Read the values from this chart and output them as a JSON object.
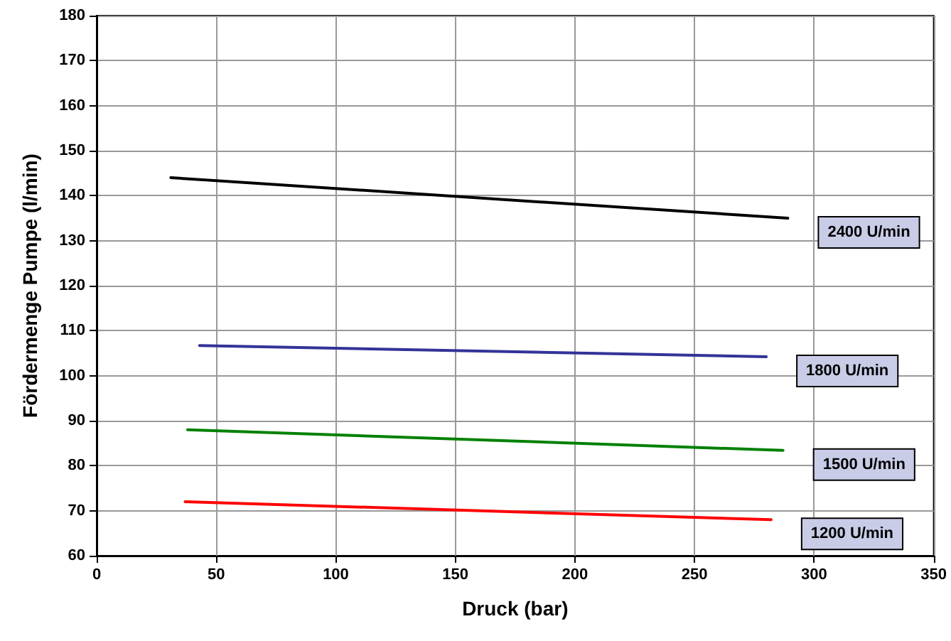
{
  "chart_data": {
    "type": "line",
    "xlabel": "Druck (bar)",
    "ylabel": "Fördermenge Pumpe (l/min)",
    "xlim": [
      0,
      350
    ],
    "xticks": [
      0,
      50,
      100,
      150,
      200,
      250,
      300,
      350
    ],
    "ylim": [
      60,
      180
    ],
    "yticks": [
      60,
      70,
      80,
      90,
      100,
      110,
      120,
      130,
      140,
      150,
      160,
      170,
      180
    ],
    "grid": true,
    "marker": "none",
    "line_style": "solid",
    "legend": false,
    "series": [
      {
        "name": "2400 U/min",
        "color": "#000000",
        "x": [
          31,
          289
        ],
        "values": [
          144,
          135
        ]
      },
      {
        "name": "1800 U/min",
        "color": "#333399",
        "x": [
          43,
          280
        ],
        "values": [
          106.7,
          104.2
        ]
      },
      {
        "name": "1500 U/min",
        "color": "#008000",
        "x": [
          38,
          287
        ],
        "values": [
          88,
          83.4
        ]
      },
      {
        "name": "1200 U/min",
        "color": "#ff0000",
        "x": [
          37,
          282
        ],
        "values": [
          72,
          68
        ]
      }
    ]
  }
}
